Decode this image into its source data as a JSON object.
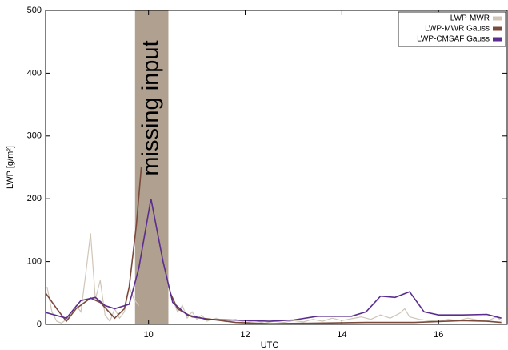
{
  "chart_data": {
    "type": "line",
    "xlabel": "UTC",
    "ylabel": "LWP [g/m²]",
    "xlim": [
      7.87,
      17.42
    ],
    "ylim": [
      0,
      500
    ],
    "xticks": [
      10,
      12,
      14,
      16
    ],
    "yticks": [
      0,
      100,
      200,
      300,
      400,
      500
    ],
    "legend": "top-right",
    "annotations": [
      {
        "text": "missing input",
        "x": [
          9.72,
          10.41
        ],
        "color": "#b0a08f"
      }
    ],
    "series": [
      {
        "name": "LWP-MWR",
        "color": "#cfc6b8",
        "x": [
          7.9,
          8.0,
          8.1,
          8.2,
          8.3,
          8.4,
          8.5,
          8.6,
          8.7,
          8.8,
          8.9,
          9.0,
          9.1,
          9.2,
          9.3,
          9.4,
          9.5,
          9.6,
          9.7,
          9.8,
          10.1,
          10.5,
          10.6,
          10.7,
          10.8,
          10.9,
          11.0,
          11.1,
          11.2,
          11.4,
          11.6,
          11.8,
          12.0,
          12.2,
          12.4,
          12.6,
          12.8,
          13.0,
          13.2,
          13.4,
          13.6,
          13.8,
          14.0,
          14.2,
          14.4,
          14.6,
          14.8,
          15.0,
          15.2,
          15.3,
          15.4,
          15.6,
          15.8,
          16.0,
          16.2,
          16.4,
          16.6,
          16.8,
          17.0,
          17.2,
          17.3
        ],
        "values": [
          60,
          20,
          5,
          2,
          8,
          15,
          30,
          20,
          80,
          145,
          40,
          70,
          15,
          5,
          25,
          10,
          20,
          60,
          40,
          30,
          null,
          40,
          20,
          30,
          10,
          20,
          8,
          15,
          5,
          10,
          4,
          8,
          3,
          6,
          2,
          5,
          3,
          6,
          4,
          8,
          5,
          10,
          6,
          9,
          12,
          8,
          15,
          10,
          18,
          25,
          12,
          8,
          6,
          5,
          8,
          6,
          10,
          7,
          5,
          12,
          6
        ]
      },
      {
        "name": "LWP-MWR Gauss",
        "color": "#7a4a3b",
        "x": [
          7.87,
          8.1,
          8.3,
          8.5,
          8.8,
          9.0,
          9.3,
          9.5,
          9.6,
          9.75,
          9.85,
          10.1,
          10.45,
          10.6,
          10.9,
          11.3,
          11.8,
          12.5,
          13.5,
          14.5,
          15.5,
          16.5,
          17.0,
          17.3
        ],
        "values": [
          50,
          25,
          5,
          25,
          42,
          35,
          10,
          25,
          60,
          160,
          250,
          null,
          50,
          25,
          12,
          8,
          3,
          1,
          2,
          3,
          3,
          6,
          5,
          3
        ]
      },
      {
        "name": "LWP-CMSAF Gauss",
        "color": "#5b2d8e",
        "x": [
          7.87,
          8.3,
          8.6,
          8.9,
          9.1,
          9.3,
          9.6,
          9.8,
          10.05,
          10.3,
          10.5,
          10.8,
          11.2,
          11.7,
          12.5,
          13.0,
          13.5,
          14.2,
          14.5,
          14.8,
          15.1,
          15.4,
          15.7,
          16.0,
          16.5,
          17.0,
          17.3
        ],
        "values": [
          19,
          10,
          38,
          43,
          30,
          25,
          32,
          90,
          200,
          100,
          35,
          15,
          8,
          7,
          5,
          7,
          13,
          13,
          20,
          45,
          43,
          52,
          20,
          15,
          15,
          16,
          10
        ]
      }
    ]
  }
}
